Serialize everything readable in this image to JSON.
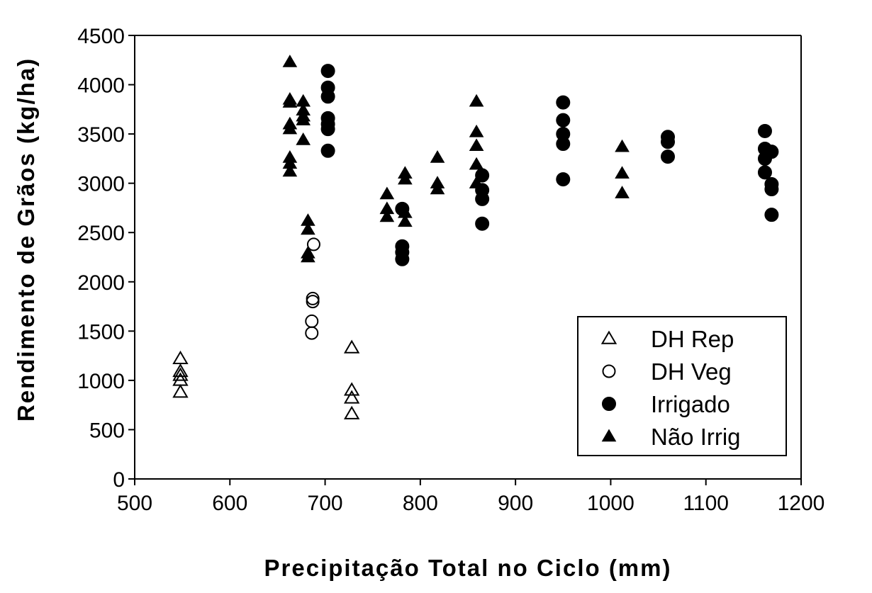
{
  "chart_data": {
    "type": "scatter",
    "xlabel": "Precipitação Total no Ciclo (mm)",
    "ylabel": "Rendimento de Grãos (kg/ha)",
    "xlim": [
      500,
      1200
    ],
    "ylim": [
      0,
      4500
    ],
    "xticks": [
      "500",
      "600",
      "700",
      "800",
      "900",
      "1000",
      "1100",
      "1200"
    ],
    "yticks": [
      "0",
      "500",
      "1000",
      "1500",
      "2000",
      "2500",
      "3000",
      "3500",
      "4000",
      "4500"
    ],
    "legend_position": "bottom-right",
    "grid": false,
    "series": [
      {
        "name": "DH Rep",
        "marker": "triangle-open",
        "points": [
          [
            548,
            1220
          ],
          [
            548,
            1090
          ],
          [
            548,
            1050
          ],
          [
            548,
            1000
          ],
          [
            548,
            880
          ],
          [
            728,
            1330
          ],
          [
            728,
            900
          ],
          [
            728,
            820
          ],
          [
            728,
            660
          ]
        ]
      },
      {
        "name": "DH Veg",
        "marker": "circle-open",
        "points": [
          [
            688,
            2380
          ],
          [
            687,
            1830
          ],
          [
            687,
            1800
          ],
          [
            686,
            1600
          ],
          [
            686,
            1480
          ]
        ]
      },
      {
        "name": "Irrigado",
        "marker": "circle-filled",
        "points": [
          [
            703,
            4140
          ],
          [
            703,
            3970
          ],
          [
            703,
            3880
          ],
          [
            703,
            3660
          ],
          [
            703,
            3600
          ],
          [
            703,
            3550
          ],
          [
            703,
            3330
          ],
          [
            781,
            2740
          ],
          [
            781,
            2360
          ],
          [
            781,
            2300
          ],
          [
            781,
            2230
          ],
          [
            865,
            3080
          ],
          [
            865,
            2930
          ],
          [
            865,
            2840
          ],
          [
            865,
            2590
          ],
          [
            950,
            3820
          ],
          [
            950,
            3640
          ],
          [
            950,
            3500
          ],
          [
            950,
            3400
          ],
          [
            950,
            3040
          ],
          [
            1060,
            3470
          ],
          [
            1060,
            3420
          ],
          [
            1060,
            3270
          ],
          [
            1162,
            3530
          ],
          [
            1162,
            3350
          ],
          [
            1162,
            3250
          ],
          [
            1162,
            3110
          ],
          [
            1169,
            3320
          ],
          [
            1169,
            2990
          ],
          [
            1169,
            2940
          ],
          [
            1169,
            2680
          ]
        ]
      },
      {
        "name": "Não Irrig",
        "marker": "triangle-filled",
        "points": [
          [
            663,
            4230
          ],
          [
            663,
            3850
          ],
          [
            663,
            3820
          ],
          [
            663,
            3600
          ],
          [
            663,
            3550
          ],
          [
            663,
            3260
          ],
          [
            663,
            3200
          ],
          [
            663,
            3120
          ],
          [
            677,
            3830
          ],
          [
            677,
            3740
          ],
          [
            677,
            3680
          ],
          [
            677,
            3640
          ],
          [
            677,
            3440
          ],
          [
            682,
            2620
          ],
          [
            682,
            2530
          ],
          [
            682,
            2290
          ],
          [
            682,
            2250
          ],
          [
            765,
            2890
          ],
          [
            765,
            2740
          ],
          [
            765,
            2660
          ],
          [
            784,
            3100
          ],
          [
            784,
            3040
          ],
          [
            784,
            2700
          ],
          [
            784,
            2610
          ],
          [
            818,
            3260
          ],
          [
            818,
            3000
          ],
          [
            818,
            2940
          ],
          [
            859,
            3830
          ],
          [
            859,
            3520
          ],
          [
            859,
            3380
          ],
          [
            859,
            3190
          ],
          [
            859,
            3000
          ],
          [
            1012,
            3370
          ],
          [
            1012,
            3100
          ],
          [
            1012,
            2900
          ]
        ]
      }
    ]
  }
}
